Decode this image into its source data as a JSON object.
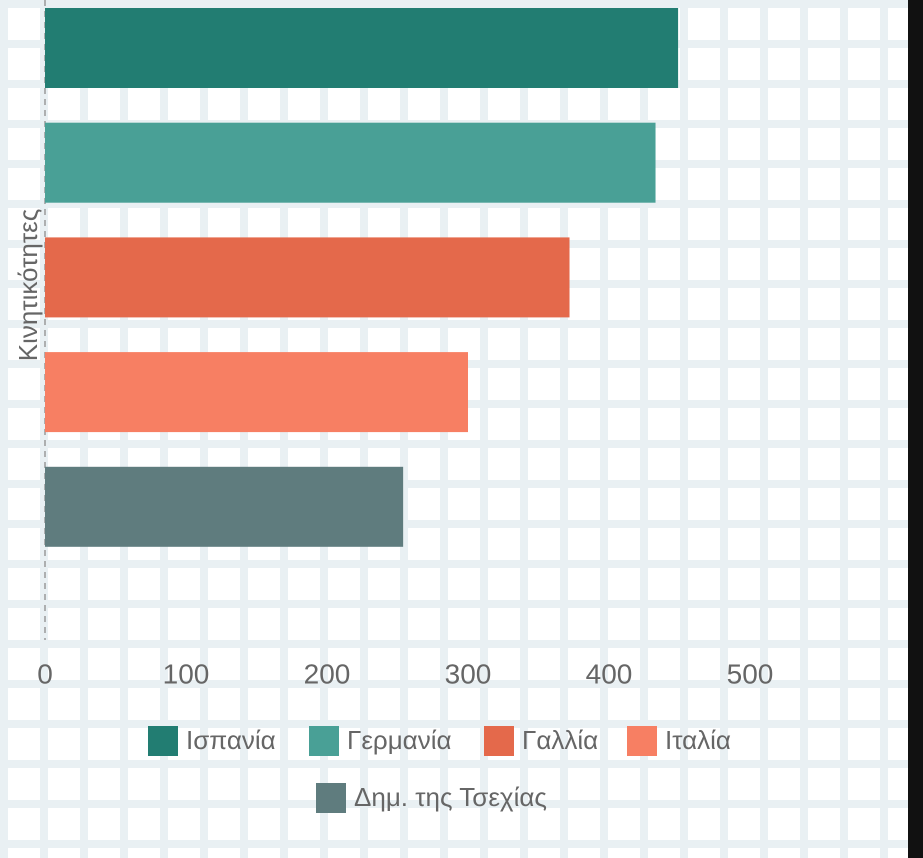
{
  "chart_data": {
    "type": "hbar",
    "ylabel": "Κινητικότητες",
    "series": [
      {
        "name": "Ισπανία",
        "color": "#227d72",
        "values": [
          449
        ]
      },
      {
        "name": "Γερμανία",
        "color": "#49a096",
        "values": [
          433
        ]
      },
      {
        "name": "Γαλλία",
        "color": "#e4694b",
        "values": [
          372
        ]
      },
      {
        "name": "Ιταλία",
        "color": "#f77f63",
        "values": [
          300
        ]
      },
      {
        "name": "Δημ. της Τσεχίας",
        "color": "#5f7c7e",
        "values": [
          254
        ]
      }
    ],
    "xlim": [
      0,
      600
    ],
    "xticks": [
      0,
      100,
      200,
      300,
      400,
      500
    ]
  }
}
